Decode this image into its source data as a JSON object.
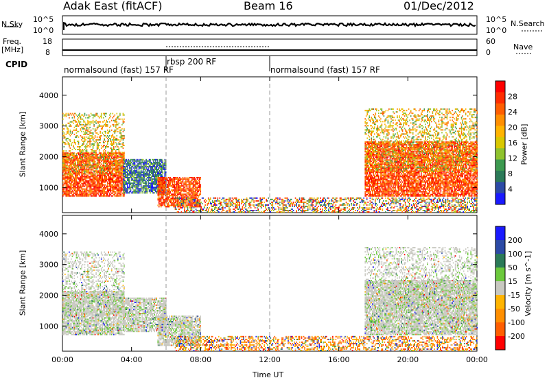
{
  "header": {
    "title": "Adak East (fitACF)",
    "beam": "Beam 16",
    "date": "01/Dec/2012"
  },
  "panels": {
    "nsky": {
      "label": "N.Sky",
      "tick_high": "10^5",
      "tick_low": "10^0"
    },
    "nsearch": {
      "label": "N.Search",
      "tick_high": "10^5",
      "tick_low": "10^0"
    },
    "freq": {
      "label": "Freq.",
      "unit": "[MHz]",
      "tick_high": "18",
      "tick_low": "8"
    },
    "nave": {
      "label": "Nave",
      "tick_high": "60",
      "tick_low": "0"
    },
    "cpid": {
      "label": "CPID",
      "segments": [
        {
          "start_h": 0,
          "end_h": 6,
          "text": "normalsound (fast) 157 RF"
        },
        {
          "start_h": 6,
          "end_h": 12,
          "text": "rbsp 200 RF"
        },
        {
          "start_h": 12,
          "end_h": 24,
          "text": "normalsound (fast) 157 RF"
        }
      ]
    }
  },
  "power_colorbar": {
    "title": "Power [dB]",
    "ticks": [
      "28",
      "24",
      "20",
      "16",
      "12",
      "8",
      "4"
    ],
    "colors": [
      "#ff0000",
      "#ff2d00",
      "#ff5e00",
      "#ff8f00",
      "#ffb400",
      "#d9c800",
      "#8fc32e",
      "#3d9a50",
      "#2b7a58",
      "#2c4aa6",
      "#1a1aff"
    ]
  },
  "velocity_colorbar": {
    "title": "Velocity [m s^-1]",
    "ticks": [
      "200",
      "100",
      "50",
      "15",
      "-15",
      "-50",
      "-100",
      "-200"
    ],
    "colors": [
      "#1a1aff",
      "#2c4aa6",
      "#2b7a58",
      "#6cc93c",
      "#c8c8c0",
      "#ffb400",
      "#ff8f00",
      "#ff5e00",
      "#ff0000"
    ]
  },
  "chart_data": {
    "type": "heatmap",
    "xlabel": "Time UT",
    "x_ticks": [
      "00:00",
      "04:00",
      "08:00",
      "12:00",
      "16:00",
      "20:00",
      "00:00"
    ],
    "x_range_hours": [
      0,
      24
    ],
    "ylabel": "Slant Range [km]",
    "y_ticks": [
      1000,
      2000,
      3000,
      4000
    ],
    "ylim": [
      180,
      4600
    ],
    "markers_hours": [
      6,
      12
    ],
    "power_regions": [
      {
        "t0": 0.0,
        "t1": 3.6,
        "r0": 700,
        "r1": 2100,
        "level": "high"
      },
      {
        "t0": 0.0,
        "t1": 3.6,
        "r0": 1400,
        "r1": 3400,
        "level": "mid"
      },
      {
        "t0": 3.5,
        "t1": 6.0,
        "r0": 800,
        "r1": 1900,
        "level": "low"
      },
      {
        "t0": 5.5,
        "t1": 8.0,
        "r0": 350,
        "r1": 1300,
        "level": "high"
      },
      {
        "t0": 6.5,
        "t1": 24.0,
        "r0": 180,
        "r1": 650,
        "level": "scatter"
      },
      {
        "t0": 17.5,
        "t1": 24.0,
        "r0": 700,
        "r1": 2500,
        "level": "high"
      },
      {
        "t0": 17.5,
        "t1": 24.0,
        "r0": 1500,
        "r1": 3550,
        "level": "mid"
      }
    ]
  }
}
